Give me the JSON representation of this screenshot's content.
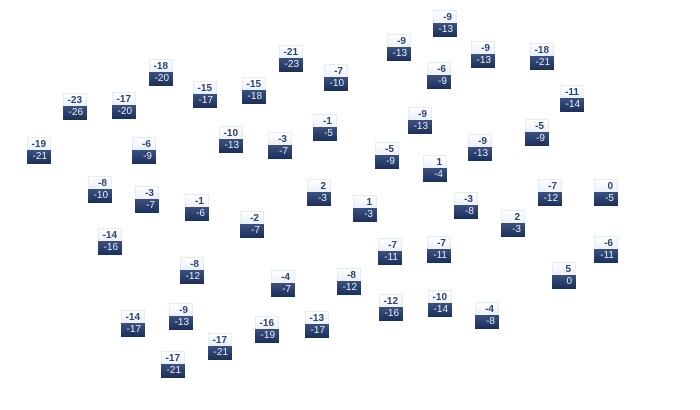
{
  "colors": {
    "high_bg": "#f2f6fc",
    "low_bg": "#22365f",
    "high_text": "#2d4470",
    "low_text": "#e8eefa"
  },
  "markers": [
    {
      "high": "-9",
      "low": "-13"
    },
    {
      "high": "-21",
      "low": "-23"
    },
    {
      "high": "-9",
      "low": "-13"
    },
    {
      "high": "-9",
      "low": "-13"
    },
    {
      "high": "-18",
      "low": "-21"
    },
    {
      "high": "-18",
      "low": "-20"
    },
    {
      "high": "-7",
      "low": "-10"
    },
    {
      "high": "-6",
      "low": "-9"
    },
    {
      "high": "-15",
      "low": "-17"
    },
    {
      "high": "-15",
      "low": "-18"
    },
    {
      "high": "-23",
      "low": "-26"
    },
    {
      "high": "-17",
      "low": "-20"
    },
    {
      "high": "-11",
      "low": "-14"
    },
    {
      "high": "-1",
      "low": "-5"
    },
    {
      "high": "-9",
      "low": "-13"
    },
    {
      "high": "-5",
      "low": "-9"
    },
    {
      "high": "-10",
      "low": "-13"
    },
    {
      "high": "-3",
      "low": "-7"
    },
    {
      "high": "-9",
      "low": "-13"
    },
    {
      "high": "-19",
      "low": "-21"
    },
    {
      "high": "-6",
      "low": "-9"
    },
    {
      "high": "-5",
      "low": "-9"
    },
    {
      "high": "1",
      "low": "-4"
    },
    {
      "high": "-8",
      "low": "-10"
    },
    {
      "high": "-3",
      "low": "-7"
    },
    {
      "high": "-1",
      "low": "-6"
    },
    {
      "high": "2",
      "low": "-3"
    },
    {
      "high": "1",
      "low": "-3"
    },
    {
      "high": "-3",
      "low": "-8"
    },
    {
      "high": "-7",
      "low": "-12"
    },
    {
      "high": "0",
      "low": "-5"
    },
    {
      "high": "-2",
      "low": "-7"
    },
    {
      "high": "2",
      "low": "-3"
    },
    {
      "high": "-14",
      "low": "-16"
    },
    {
      "high": "-7",
      "low": "-11"
    },
    {
      "high": "-7",
      "low": "-11"
    },
    {
      "high": "-6",
      "low": "-11"
    },
    {
      "high": "-8",
      "low": "-12"
    },
    {
      "high": "-4",
      "low": "-7"
    },
    {
      "high": "-8",
      "low": "-12"
    },
    {
      "high": "5",
      "low": "0"
    },
    {
      "high": "-12",
      "low": "-16"
    },
    {
      "high": "-10",
      "low": "-14"
    },
    {
      "high": "-4",
      "low": "-8"
    },
    {
      "high": "-14",
      "low": "-17"
    },
    {
      "high": "-9",
      "low": "-13"
    },
    {
      "high": "-16",
      "low": "-19"
    },
    {
      "high": "-13",
      "low": "-17"
    },
    {
      "high": "-17",
      "low": "-21"
    },
    {
      "high": "-17",
      "low": "-21"
    }
  ]
}
